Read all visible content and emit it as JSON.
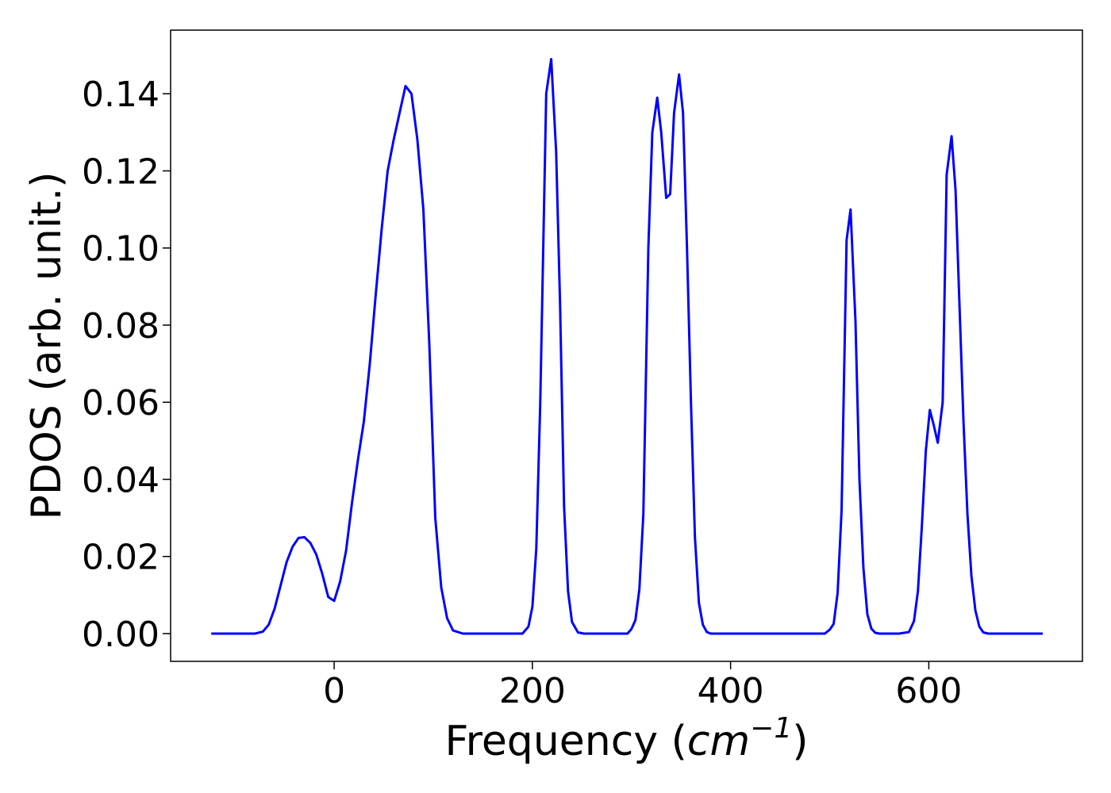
{
  "chart_data": {
    "type": "line",
    "xlabel": "Frequency",
    "xlabel_unit": "cm",
    "xlabel_unit_exponent": "−1",
    "ylabel": "PDOS (arb. unit.)",
    "xlim": [
      -165,
      755
    ],
    "ylim": [
      -0.0072,
      0.1565
    ],
    "x_ticks": [
      0,
      200,
      400,
      600
    ],
    "x_tick_labels": [
      "0",
      "200",
      "400",
      "600"
    ],
    "y_ticks": [
      0.0,
      0.02,
      0.04,
      0.06,
      0.08,
      0.1,
      0.12,
      0.14
    ],
    "y_tick_labels": [
      "0.00",
      "0.02",
      "0.04",
      "0.06",
      "0.08",
      "0.10",
      "0.12",
      "0.14"
    ],
    "grid": false,
    "legend": "none",
    "series": [
      {
        "color": "#0000ff",
        "x": [
          -124,
          -100,
          -80,
          -72,
          -66,
          -60,
          -54,
          -48,
          -42,
          -36,
          -30,
          -24,
          -18,
          -12,
          -6,
          0,
          6,
          12,
          18,
          24,
          30,
          36,
          42,
          48,
          54,
          60,
          66,
          72,
          78,
          84,
          90,
          96,
          102,
          108,
          114,
          120,
          130,
          150,
          170,
          190,
          196,
          200,
          204,
          208,
          214,
          219,
          224,
          228,
          232,
          236,
          240,
          246,
          252,
          260,
          280,
          296,
          300,
          304,
          308,
          312,
          317,
          321,
          326,
          330,
          335,
          339,
          343,
          348,
          352,
          356,
          360,
          364,
          368,
          372,
          376,
          380,
          390,
          420,
          460,
          495,
          500,
          504,
          508,
          512,
          517,
          521,
          526,
          530,
          534,
          538,
          542,
          546,
          550,
          560,
          570,
          580,
          585,
          589,
          593,
          597,
          601,
          605,
          609,
          614,
          618,
          623,
          627,
          631,
          635,
          639,
          643,
          647,
          651,
          655,
          660,
          670,
          690,
          715
        ],
        "y": [
          0.0,
          0.0,
          0.0,
          0.0005,
          0.0023,
          0.0065,
          0.0125,
          0.0185,
          0.0225,
          0.0248,
          0.025,
          0.0235,
          0.0205,
          0.0155,
          0.0095,
          0.0085,
          0.0135,
          0.0215,
          0.034,
          0.045,
          0.055,
          0.07,
          0.088,
          0.105,
          0.12,
          0.128,
          0.135,
          0.142,
          0.14,
          0.128,
          0.11,
          0.075,
          0.03,
          0.012,
          0.004,
          0.0008,
          0.0,
          0.0,
          0.0,
          0.0,
          0.0018,
          0.007,
          0.022,
          0.06,
          0.14,
          0.149,
          0.125,
          0.085,
          0.033,
          0.011,
          0.003,
          0.0003,
          0.0,
          0.0,
          0.0,
          0.0,
          0.0012,
          0.0035,
          0.0115,
          0.031,
          0.1,
          0.13,
          0.139,
          0.13,
          0.113,
          0.114,
          0.135,
          0.145,
          0.135,
          0.1,
          0.06,
          0.025,
          0.008,
          0.0023,
          0.0004,
          0.0,
          0.0,
          0.0,
          0.0,
          0.0,
          0.001,
          0.0025,
          0.0105,
          0.032,
          0.102,
          0.11,
          0.081,
          0.04,
          0.017,
          0.005,
          0.0013,
          0.0002,
          0.0,
          0.0,
          0.0,
          0.0004,
          0.0032,
          0.011,
          0.028,
          0.0475,
          0.058,
          0.054,
          0.0495,
          0.06,
          0.119,
          0.129,
          0.115,
          0.085,
          0.055,
          0.031,
          0.015,
          0.006,
          0.0018,
          0.0003,
          0.0,
          0.0,
          0.0,
          0.0
        ]
      }
    ]
  }
}
